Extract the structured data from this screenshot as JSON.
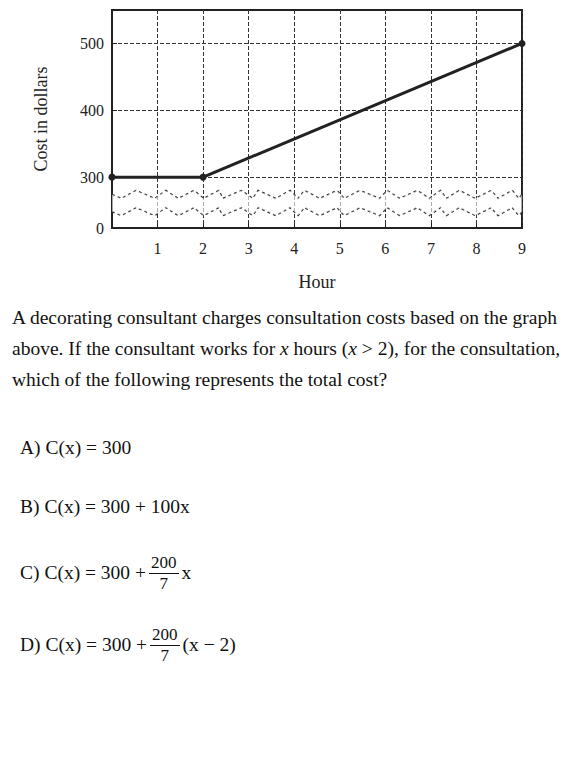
{
  "chart_data": {
    "type": "line",
    "x_label": "Hour",
    "y_label": "Cost in dollars",
    "x": [
      0,
      2,
      9
    ],
    "values": [
      300,
      300,
      500
    ],
    "color": "#222222",
    "marker": "circle",
    "xlim": [
      0,
      9
    ],
    "xticks": [
      1,
      2,
      3,
      4,
      5,
      6,
      7,
      8,
      9
    ],
    "ylim": [
      0,
      550
    ],
    "yticks": [
      0,
      300,
      400,
      500
    ],
    "grid": true
  },
  "question": [
    "A decorating consultant charges consultation costs based on the graph above.  If the consultant works for ",
    {
      "italic": "x"
    },
    " hours (",
    {
      "italic": "x"
    },
    " > 2), for the consultation, which of the following represents the total cost?"
  ],
  "options": [
    {
      "letter": "A)",
      "before": "C(x) = 300"
    },
    {
      "letter": "B)",
      "before": "C(x) = 300 + 100x"
    },
    {
      "letter": "C)",
      "before": "C(x) = 300 +",
      "numerator": "200",
      "denominator": "7",
      "after": "x"
    },
    {
      "letter": "D)",
      "before": "C(x) = 300 +",
      "numerator": "200",
      "denominator": "7",
      "after": "(x − 2)"
    }
  ]
}
